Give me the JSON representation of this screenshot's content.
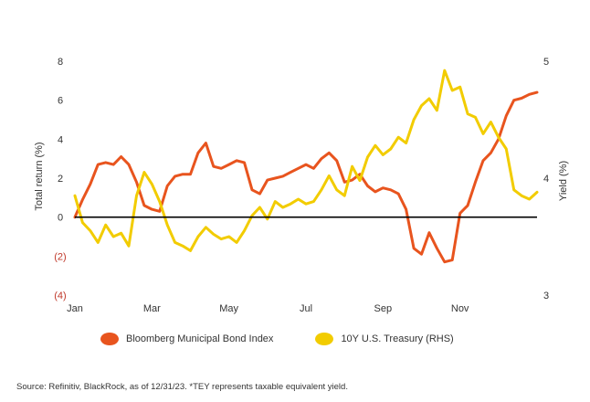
{
  "chart_data": {
    "type": "line",
    "x_labels": [
      "Jan",
      "Mar",
      "May",
      "Jul",
      "Sep",
      "Nov"
    ],
    "x_range": [
      0,
      12
    ],
    "left_axis": {
      "label": "Total return (%)",
      "range": [
        -4,
        8
      ],
      "ticks": [
        8,
        6,
        4,
        2,
        0,
        -2,
        -4
      ],
      "tick_labels": [
        "8",
        "6",
        "4",
        "2",
        "0",
        "(2)",
        "(4)"
      ]
    },
    "right_axis": {
      "label": "Yield (%)",
      "range": [
        3,
        5
      ],
      "ticks": [
        5,
        4,
        3
      ],
      "tick_labels": [
        "5",
        "4",
        "3"
      ]
    },
    "zero_line": true,
    "grid": false,
    "legend_position": "bottom",
    "series": [
      {
        "name": "Bloomberg Municipal Bond Index",
        "axis": "left",
        "color": "#e8541e",
        "x": [
          0,
          0.2,
          0.4,
          0.6,
          0.8,
          1.0,
          1.2,
          1.4,
          1.6,
          1.8,
          2.0,
          2.2,
          2.4,
          2.6,
          2.8,
          3.0,
          3.2,
          3.4,
          3.6,
          3.8,
          4.0,
          4.2,
          4.4,
          4.6,
          4.8,
          5.0,
          5.2,
          5.4,
          5.6,
          5.8,
          6.0,
          6.2,
          6.4,
          6.6,
          6.8,
          7.0,
          7.2,
          7.4,
          7.6,
          7.8,
          8.0,
          8.2,
          8.4,
          8.6,
          8.8,
          9.0,
          9.2,
          9.4,
          9.6,
          9.8,
          10.0,
          10.2,
          10.4,
          10.6,
          10.8,
          11.0,
          11.2,
          11.4,
          11.6,
          11.8,
          12.0
        ],
        "values": [
          0.0,
          0.9,
          1.7,
          2.7,
          2.8,
          2.7,
          3.1,
          2.7,
          1.8,
          0.6,
          0.4,
          0.3,
          1.6,
          2.1,
          2.2,
          2.2,
          3.3,
          3.8,
          2.6,
          2.5,
          2.7,
          2.9,
          2.8,
          1.4,
          1.2,
          1.9,
          2.0,
          2.1,
          2.3,
          2.5,
          2.7,
          2.5,
          3.0,
          3.3,
          2.9,
          1.8,
          1.9,
          2.2,
          1.6,
          1.3,
          1.5,
          1.4,
          1.2,
          0.4,
          -1.6,
          -1.9,
          -0.8,
          -1.6,
          -2.3,
          -2.2,
          0.2,
          0.6,
          1.8,
          2.9,
          3.3,
          4.0,
          5.2,
          6.0,
          6.1,
          6.3,
          6.4
        ]
      },
      {
        "name": "10Y U.S. Treasury (RHS)",
        "axis": "right",
        "color": "#f2cc00",
        "x": [
          0,
          0.2,
          0.4,
          0.6,
          0.8,
          1.0,
          1.2,
          1.4,
          1.6,
          1.8,
          2.0,
          2.2,
          2.4,
          2.6,
          2.8,
          3.0,
          3.2,
          3.4,
          3.6,
          3.8,
          4.0,
          4.2,
          4.4,
          4.6,
          4.8,
          5.0,
          5.2,
          5.4,
          5.6,
          5.8,
          6.0,
          6.2,
          6.4,
          6.6,
          6.8,
          7.0,
          7.2,
          7.4,
          7.6,
          7.8,
          8.0,
          8.2,
          8.4,
          8.6,
          8.8,
          9.0,
          9.2,
          9.4,
          9.6,
          9.8,
          10.0,
          10.2,
          10.4,
          10.6,
          10.8,
          11.0,
          11.2,
          11.4,
          11.6,
          11.8,
          12.0
        ],
        "values": [
          3.85,
          3.62,
          3.55,
          3.45,
          3.6,
          3.5,
          3.53,
          3.42,
          3.85,
          4.05,
          3.95,
          3.8,
          3.6,
          3.45,
          3.42,
          3.38,
          3.5,
          3.58,
          3.52,
          3.48,
          3.5,
          3.45,
          3.55,
          3.68,
          3.75,
          3.65,
          3.8,
          3.75,
          3.78,
          3.82,
          3.78,
          3.8,
          3.9,
          4.02,
          3.9,
          3.85,
          4.1,
          3.98,
          4.18,
          4.28,
          4.2,
          4.25,
          4.35,
          4.3,
          4.5,
          4.62,
          4.68,
          4.58,
          4.92,
          4.75,
          4.78,
          4.55,
          4.52,
          4.38,
          4.48,
          4.35,
          4.25,
          3.9,
          3.85,
          3.82,
          3.88
        ]
      }
    ]
  },
  "footer": {
    "source": "Source: Refinitiv, BlackRock, as of 12/31/23. *TEY represents taxable equivalent yield."
  }
}
